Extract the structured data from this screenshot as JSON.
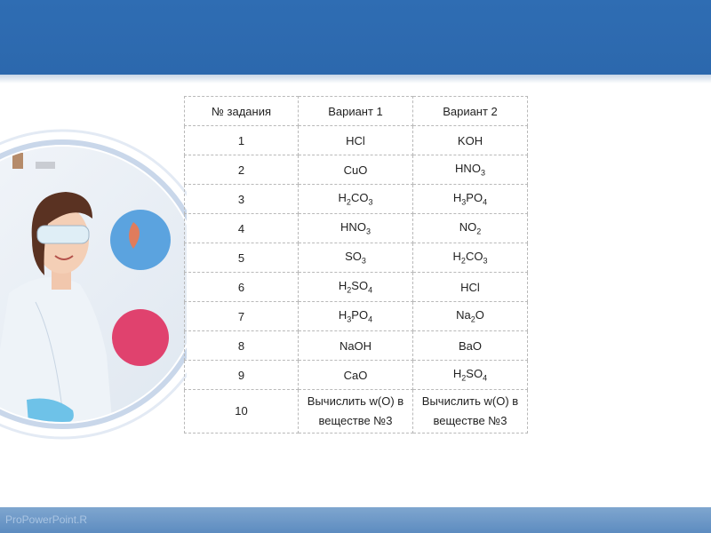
{
  "watermark": "ProPowerPoint.R",
  "table": {
    "headers": [
      "№ задания",
      "Вариант 1",
      "Вариант 2"
    ],
    "rows": [
      {
        "n": "1",
        "v1": "HCl",
        "v2": "KOH"
      },
      {
        "n": "2",
        "v1": "CuO",
        "v2": "HNO3"
      },
      {
        "n": "3",
        "v1": "H2CO3",
        "v2": "H3PO4"
      },
      {
        "n": "4",
        "v1": "HNO3",
        "v2": "NO2"
      },
      {
        "n": "5",
        "v1": "SO3",
        "v2": "H2CO3"
      },
      {
        "n": "6",
        "v1": "H2SO4",
        "v2": "HCl"
      },
      {
        "n": "7",
        "v1": "H3PO4",
        "v2": "Na2O"
      },
      {
        "n": "8",
        "v1": "NaOH",
        "v2": "BaO"
      },
      {
        "n": "9",
        "v1": "CaO",
        "v2": "H2SO4"
      },
      {
        "n": "10",
        "v1": "Вычислить w(O) в веществе №3",
        "v2": "Вычислить w(O) в веществе №3"
      }
    ]
  },
  "colors": {
    "header_band": "#2f6db3",
    "footer_band": "#6f99c8",
    "ring": "#c9d7ea"
  }
}
